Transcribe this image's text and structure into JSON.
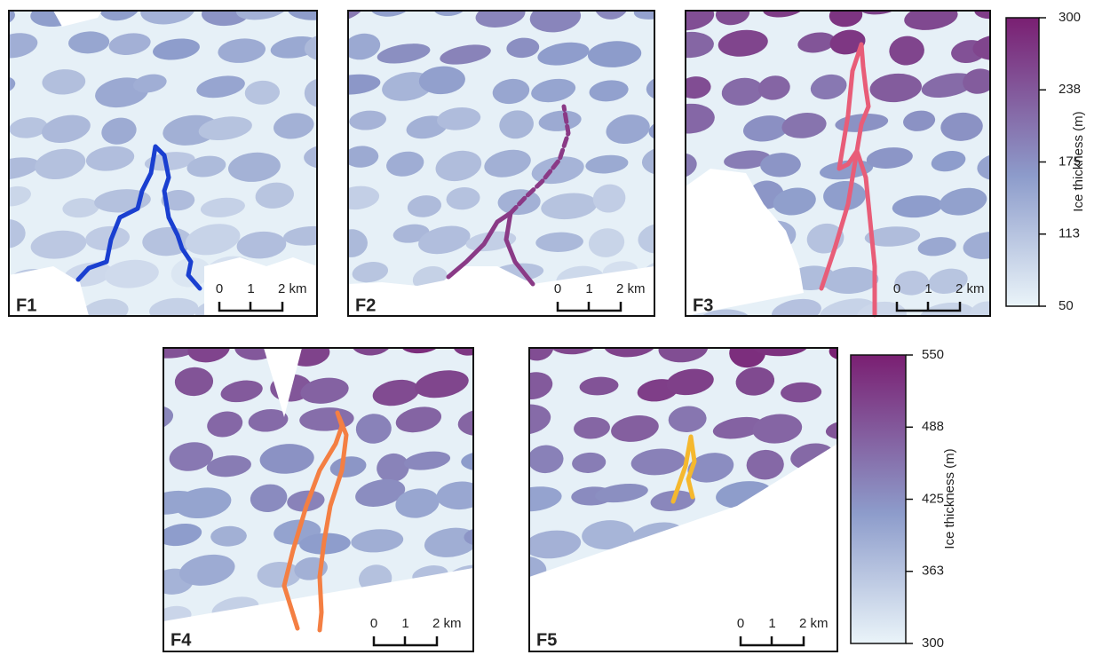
{
  "panels": [
    {
      "label": "F1",
      "scale": [
        "0",
        "1",
        "2 km"
      ]
    },
    {
      "label": "F2",
      "scale": [
        "0",
        "1",
        "2 km"
      ]
    },
    {
      "label": "F3",
      "scale": [
        "0",
        "1",
        "2 km"
      ]
    },
    {
      "label": "F4",
      "scale": [
        "0",
        "1",
        "2 km"
      ]
    },
    {
      "label": "F5",
      "scale": [
        "0",
        "1",
        "2 km"
      ]
    }
  ],
  "colorbars": [
    {
      "title": "Ice thickness (m)",
      "ticks": [
        300,
        238,
        175,
        113,
        50
      ]
    },
    {
      "title": "Ice thickness (m)",
      "ticks": [
        550,
        488,
        425,
        363,
        300
      ]
    }
  ]
}
